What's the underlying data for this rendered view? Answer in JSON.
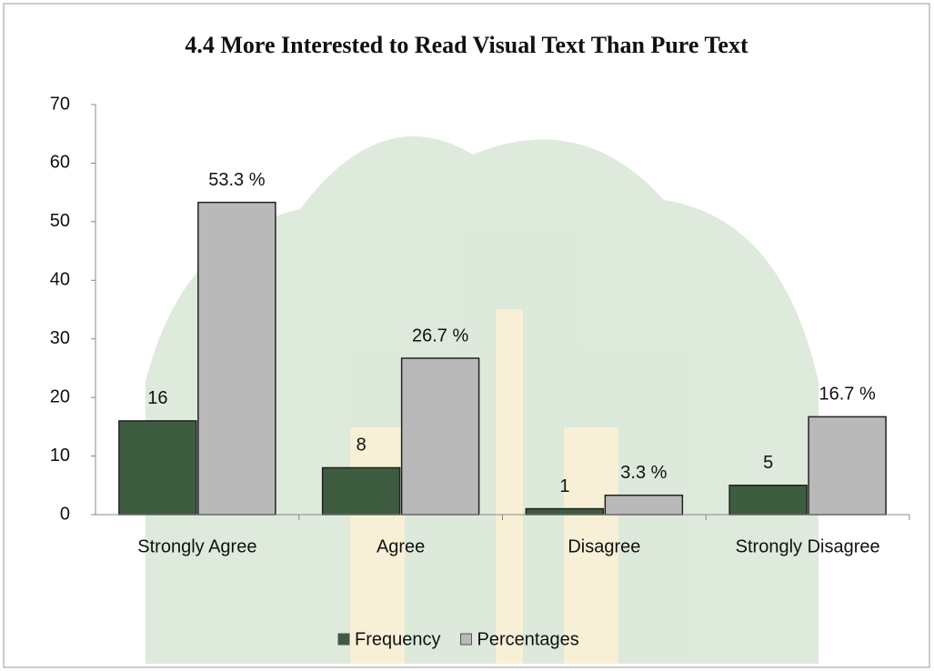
{
  "chart_data": {
    "type": "bar",
    "title": "4.4 More Interested to Read Visual Text Than Pure Text",
    "categories": [
      "Strongly Agree",
      "Agree",
      "Disagree",
      "Strongly Disagree"
    ],
    "series": [
      {
        "name": "Frequency",
        "color": "#3e5c40",
        "values": [
          16,
          8,
          1,
          5
        ]
      },
      {
        "name": "Percentages",
        "color": "#b9b9b9",
        "values": [
          53.3,
          26.7,
          3.3,
          16.7
        ],
        "value_labels": [
          "53.3 %",
          "26.7 %",
          "3.3 %",
          "16.7 %"
        ]
      }
    ],
    "ylim": [
      0,
      70
    ],
    "yticks": [
      0,
      10,
      20,
      30,
      40,
      50,
      60,
      70
    ],
    "grid": false,
    "legend": "bottom"
  }
}
